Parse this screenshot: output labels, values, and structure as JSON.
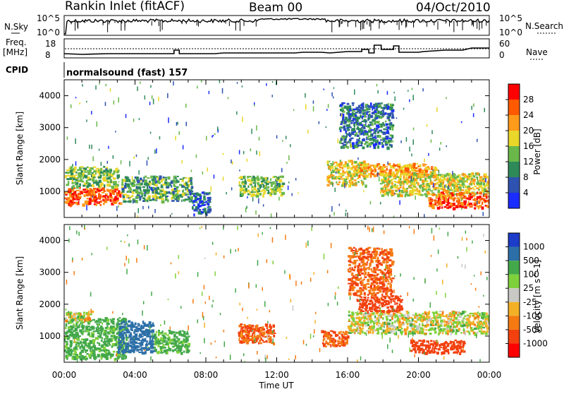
{
  "header": {
    "station": "Rankin Inlet (fitACF)",
    "beam": "Beam 00",
    "date": "04/Oct/2010"
  },
  "strip_nsky": {
    "left_label": "N.Sky",
    "left_ticks": [
      "10^5",
      "10^0"
    ],
    "right_ticks": [
      "10^5",
      "10^0"
    ],
    "right_label": "N.Search"
  },
  "strip_freq": {
    "left_label_1": "Freq.",
    "left_label_2": "[MHz]",
    "left_ticks": [
      "18",
      "8"
    ],
    "right_ticks": [
      "60",
      "0"
    ],
    "right_label": "Nave"
  },
  "cpid": {
    "label": "CPID",
    "value": "normalsound (fast) 157"
  },
  "panels": {
    "ylabel": "Slant Range [km]",
    "yticks": [
      "4000",
      "3000",
      "2000",
      "1000"
    ],
    "xticks": [
      "00:00",
      "04:00",
      "08:00",
      "12:00",
      "16:00",
      "20:00",
      "00:00"
    ],
    "xlabel": "Time UT"
  },
  "colorbar_power": {
    "label": "Power [dB]",
    "ticks": [
      "28",
      "24",
      "20",
      "16",
      "12",
      "8",
      "4"
    ],
    "colors": [
      "#ff0000",
      "#ff5a00",
      "#ff9a1a",
      "#e9d72a",
      "#6ab84a",
      "#2f8a5a",
      "#2e52b0",
      "#1a2cff"
    ]
  },
  "colorbar_velocity": {
    "label": "Velocity [m s^-1]",
    "ticks": [
      "1000",
      "500",
      "100",
      "25",
      "-25",
      "-100",
      "-500",
      "-1000"
    ],
    "colors": [
      "#1c3cc9",
      "#2c6fa8",
      "#43a84a",
      "#7fd13b",
      "#c8c8c4",
      "#f3b026",
      "#f57a12",
      "#f2410f",
      "#ff0000"
    ]
  },
  "chart_data": [
    {
      "type": "heatmap",
      "title": "Power",
      "x_range_hours_ut": [
        0,
        24
      ],
      "y_range_km": [
        180,
        4500
      ],
      "colorbar_label": "Power [dB]",
      "regions": [
        {
          "t": [
            0.0,
            3.2
          ],
          "r": [
            600,
            1150
          ],
          "level": 28
        },
        {
          "t": [
            0.0,
            3.0
          ],
          "r": [
            1150,
            1800
          ],
          "level": 16
        },
        {
          "t": [
            3.2,
            7.2
          ],
          "r": [
            700,
            1500
          ],
          "level": 14
        },
        {
          "t": [
            7.2,
            8.2
          ],
          "r": [
            300,
            1000
          ],
          "level": 8
        },
        {
          "t": [
            9.8,
            12.3
          ],
          "r": [
            900,
            1500
          ],
          "level": 16
        },
        {
          "t": [
            14.8,
            17.0
          ],
          "r": [
            1200,
            2000
          ],
          "level": 20
        },
        {
          "t": [
            16.5,
            21.0
          ],
          "r": [
            1500,
            1900
          ],
          "level": 24
        },
        {
          "t": [
            17.8,
            24.0
          ],
          "r": [
            900,
            1600
          ],
          "level": 20
        },
        {
          "t": [
            20.5,
            24.0
          ],
          "r": [
            500,
            1000
          ],
          "level": 28
        },
        {
          "t": [
            15.5,
            18.5
          ],
          "r": [
            2400,
            3800
          ],
          "level": 10
        }
      ]
    },
    {
      "type": "heatmap",
      "title": "Velocity",
      "x_range_hours_ut": [
        0,
        24
      ],
      "y_range_km": [
        180,
        4500
      ],
      "colorbar_label": "Velocity [m s^-1]",
      "regions": [
        {
          "t": [
            0.0,
            3.5
          ],
          "r": [
            300,
            1600
          ],
          "level": 100
        },
        {
          "t": [
            0.0,
            1.5
          ],
          "r": [
            1500,
            1800
          ],
          "level": 0
        },
        {
          "t": [
            3.0,
            5.0
          ],
          "r": [
            500,
            1500
          ],
          "level": 500
        },
        {
          "t": [
            5.0,
            7.0
          ],
          "r": [
            500,
            1200
          ],
          "level": 100
        },
        {
          "t": [
            9.8,
            11.8
          ],
          "r": [
            800,
            1400
          ],
          "level": -300
        },
        {
          "t": [
            14.5,
            16.0
          ],
          "r": [
            700,
            1200
          ],
          "level": -300
        },
        {
          "t": [
            16.0,
            24.0
          ],
          "r": [
            1100,
            1800
          ],
          "level": 0
        },
        {
          "t": [
            16.5,
            19.0
          ],
          "r": [
            1800,
            2300
          ],
          "level": -400
        },
        {
          "t": [
            19.5,
            22.5
          ],
          "r": [
            500,
            900
          ],
          "level": -500
        },
        {
          "t": [
            16.0,
            18.5
          ],
          "r": [
            2300,
            3800
          ],
          "level": -300
        }
      ]
    }
  ]
}
